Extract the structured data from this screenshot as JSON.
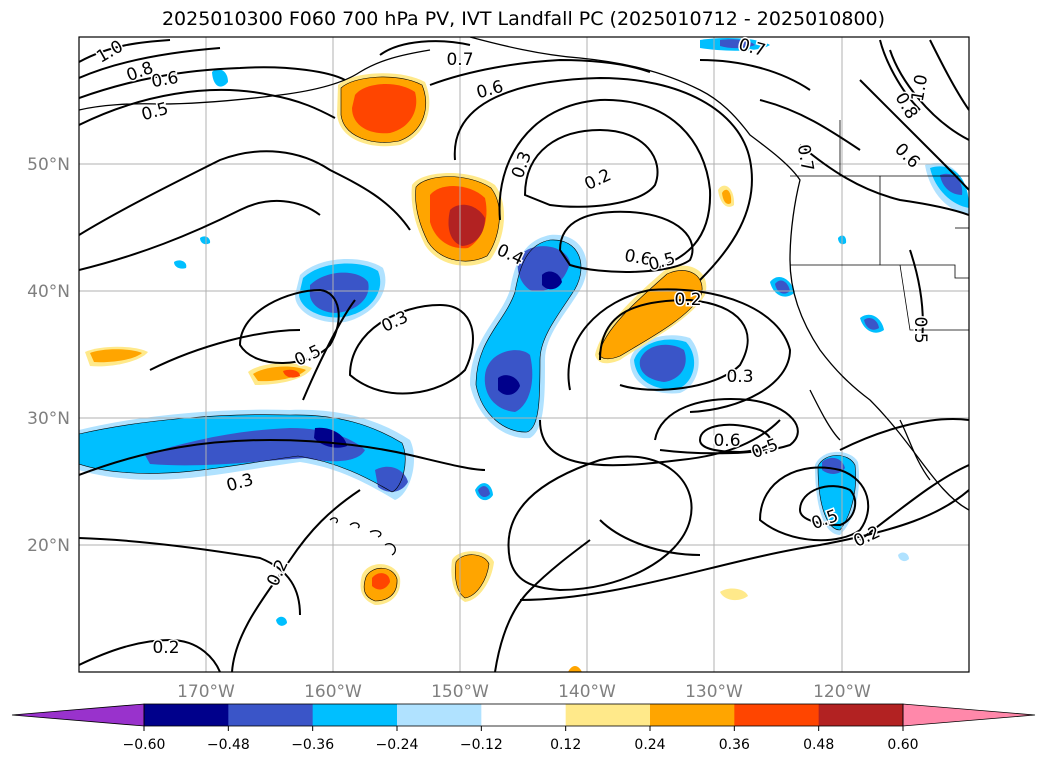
{
  "title": "2025010300 F060 700 hPa PV, IVT Landfall PC (2025010712 - 2025010800)",
  "map": {
    "lon_range": [
      -180,
      -110
    ],
    "lat_range": [
      10,
      60
    ],
    "lon_ticks": [
      "170°W",
      "160°W",
      "150°W",
      "140°W",
      "130°W",
      "120°W"
    ],
    "lat_ticks": [
      "20°N",
      "30°N",
      "40°N",
      "50°N"
    ],
    "gridlines": true
  },
  "contour_labels": [
    "1.0",
    "0.8",
    "0.6",
    "0.5",
    "0.7",
    "0.6",
    "0.3",
    "0.2",
    "0.4",
    "0.6",
    "0.5",
    "0.2",
    "0.3",
    "0.5",
    "0.3",
    "0.6",
    "0.5",
    "0.3",
    "0.5",
    "0.2",
    "0.2",
    "0.2",
    "0.7",
    "0.8",
    "0.6",
    "1.0",
    "0.7",
    "0.5"
  ],
  "colorbar": {
    "ticks": [
      "−0.60",
      "−0.48",
      "−0.36",
      "−0.24",
      "−0.12",
      "0.12",
      "0.24",
      "0.36",
      "0.48",
      "0.60"
    ],
    "colors": [
      "#9932cc",
      "#00008b",
      "#3a55c8",
      "#00bfff",
      "#b0e2ff",
      "#ffffff",
      "#ffe98a",
      "#ffa500",
      "#ff4500",
      "#b22222",
      "#ff88aa"
    ]
  }
}
